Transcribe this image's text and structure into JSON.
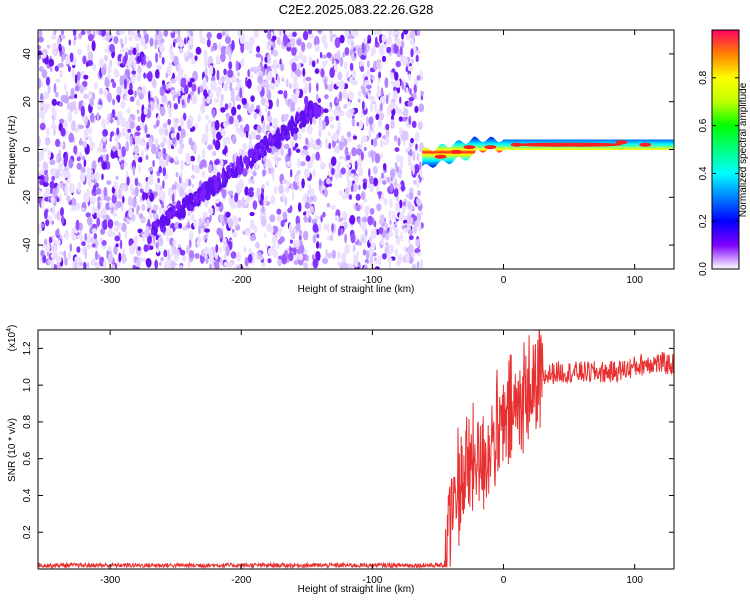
{
  "title": "C2E2.2025.083.22.26.G28",
  "chart_data": [
    {
      "type": "heatmap",
      "xlabel": "Height of straight line (km)",
      "ylabel": "Frequency (Hz)",
      "xlim": [
        -355,
        130
      ],
      "ylim": [
        -50,
        50
      ],
      "xticks": [
        -300,
        -200,
        -100,
        0,
        100
      ],
      "yticks": [
        -40,
        -20,
        0,
        20,
        40
      ],
      "colorbar": {
        "label": "Normalized spectral amplitude",
        "range": [
          0.0,
          1.0
        ],
        "ticks": [
          0.0,
          0.2,
          0.4,
          0.6,
          0.8
        ],
        "tick_labels": [
          "0.0",
          "0.2",
          "0.4",
          "0.6",
          "0.8"
        ]
      },
      "features": {
        "noise_region_x": [
          -355,
          -65
        ],
        "diagonal_track": {
          "x": [
            -270,
            -140
          ],
          "y": [
            -35,
            18
          ]
        },
        "narrowband_line": {
          "x": [
            -62,
            130
          ],
          "y": [
            -5,
            3
          ],
          "peak_amplitude": 1.0
        }
      }
    },
    {
      "type": "line",
      "xlabel": "Height of straight line (km)",
      "ylabel": "SNR (10 * v/v)",
      "scale_label": "(x10",
      "scale_exp": "4",
      "xlim": [
        -355,
        130
      ],
      "ylim": [
        0,
        1.3
      ],
      "xticks": [
        -300,
        -200,
        -100,
        0,
        100
      ],
      "yticks": [
        0.2,
        0.4,
        0.6,
        0.8,
        1.0,
        1.2
      ],
      "series": [
        {
          "color": "#e83030",
          "x": [
            -355,
            -300,
            -200,
            -100,
            -45,
            -40,
            -35,
            -30,
            -25,
            -20,
            -15,
            -10,
            -5,
            0,
            5,
            10,
            15,
            20,
            25,
            30,
            35,
            40,
            60,
            80,
            90,
            100,
            110,
            120,
            130
          ],
          "y": [
            0.02,
            0.02,
            0.02,
            0.02,
            0.02,
            0.3,
            0.45,
            0.5,
            0.55,
            0.6,
            0.6,
            0.68,
            0.72,
            0.75,
            0.82,
            0.88,
            0.92,
            0.97,
            1.02,
            1.04,
            1.06,
            1.07,
            1.07,
            1.07,
            1.08,
            1.1,
            1.12,
            1.12,
            1.11
          ]
        }
      ]
    }
  ]
}
